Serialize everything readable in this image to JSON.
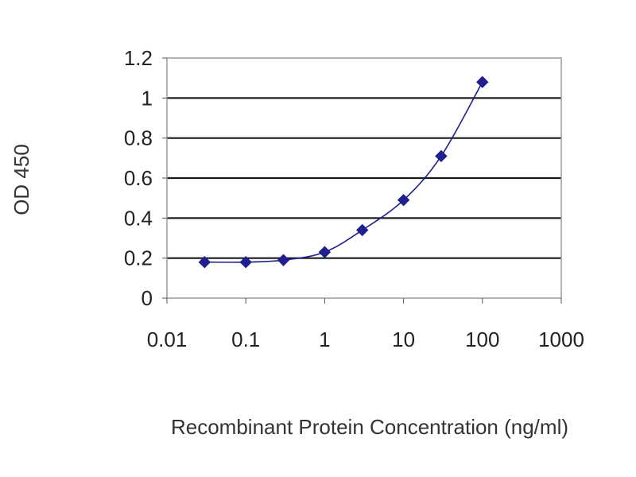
{
  "chart_data": {
    "type": "scatter",
    "title": "",
    "xlabel": "Recombinant Protein Concentration (ng/ml)",
    "ylabel": "OD 450",
    "x_scale": "log",
    "xlim": [
      0.01,
      1000
    ],
    "ylim": [
      0,
      1.2
    ],
    "x_ticks": [
      "0.01",
      "0.1",
      "1",
      "10",
      "100",
      "1000"
    ],
    "y_ticks": [
      "0",
      "0.2",
      "0.4",
      "0.6",
      "0.8",
      "1",
      "1.2"
    ],
    "grid": "horizontal",
    "legend": "none",
    "series": [
      {
        "x": [
          0.03,
          0.1,
          0.3,
          1,
          3,
          10,
          30,
          100
        ],
        "y": [
          0.18,
          0.18,
          0.19,
          0.23,
          0.34,
          0.49,
          0.71,
          1.08
        ],
        "color": "#1f1f8f",
        "marker": "diamond",
        "line": "smooth"
      }
    ]
  }
}
